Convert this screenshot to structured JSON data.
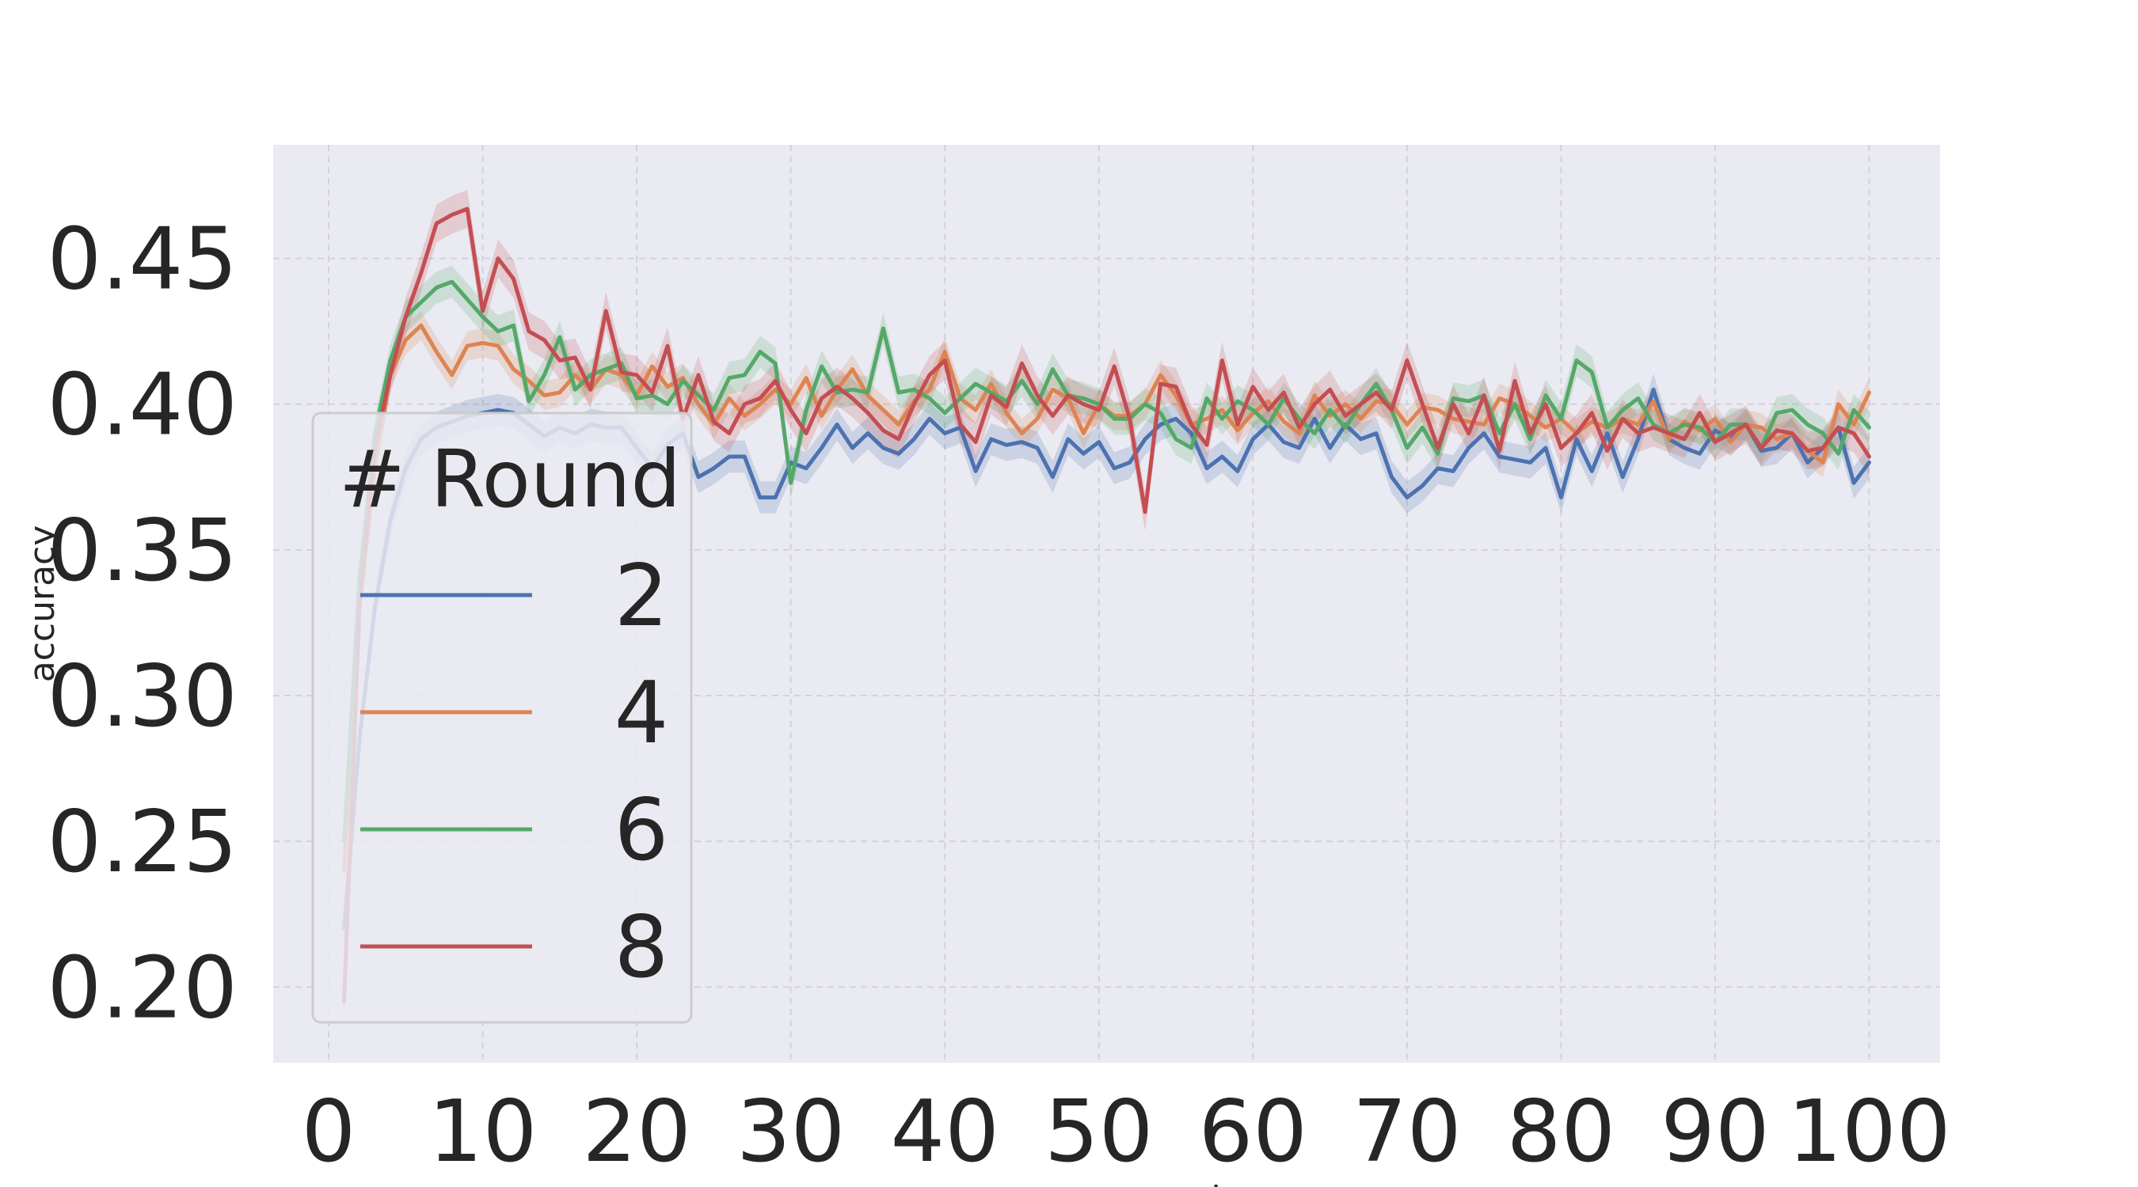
{
  "chart_data": {
    "type": "line",
    "title": "",
    "xlabel": "server_round",
    "ylabel": "accuracy",
    "xlim": [
      -3.6,
      104.6
    ],
    "ylim": [
      0.174,
      0.489
    ],
    "x_ticks": [
      0,
      10,
      20,
      30,
      40,
      50,
      60,
      70,
      80,
      90,
      100
    ],
    "y_ticks": [
      0.2,
      0.25,
      0.3,
      0.35,
      0.4,
      0.45
    ],
    "x_tick_labels": [
      "0",
      "10",
      "20",
      "30",
      "40",
      "50",
      "60",
      "70",
      "80",
      "90",
      "100"
    ],
    "y_tick_labels": [
      "0.20",
      "0.25",
      "0.30",
      "0.35",
      "0.40",
      "0.45"
    ],
    "grid": true,
    "background": "#eaeaf2",
    "legend": {
      "title": "# Round",
      "placement": "center-left"
    },
    "series": [
      {
        "name": "2",
        "color": "#4c72b0",
        "band": 0.0055,
        "x": [
          1,
          2,
          3,
          4,
          5,
          6,
          7,
          8,
          9,
          10,
          11,
          12,
          13,
          14,
          15,
          16,
          17,
          18,
          19,
          20,
          21,
          22,
          23,
          24,
          25,
          26,
          27,
          28,
          29,
          30,
          31,
          32,
          33,
          34,
          35,
          36,
          37,
          38,
          39,
          40,
          41,
          42,
          43,
          44,
          45,
          46,
          47,
          48,
          49,
          50,
          51,
          52,
          53,
          54,
          55,
          56,
          57,
          58,
          59,
          60,
          61,
          62,
          63,
          64,
          65,
          66,
          67,
          68,
          69,
          70,
          71,
          72,
          73,
          74,
          75,
          76,
          77,
          78,
          79,
          80,
          81,
          82,
          83,
          84,
          85,
          86,
          87,
          88,
          89,
          90,
          91,
          92,
          93,
          94,
          95,
          96,
          97,
          98,
          99,
          100
        ],
        "values": [
          0.22,
          0.285,
          0.33,
          0.36,
          0.378,
          0.388,
          0.392,
          0.394,
          0.396,
          0.397,
          0.398,
          0.397,
          0.393,
          0.389,
          0.392,
          0.39,
          0.393,
          0.392,
          0.392,
          0.385,
          0.378,
          0.386,
          0.39,
          0.375,
          0.378,
          0.382,
          0.382,
          0.368,
          0.368,
          0.38,
          0.378,
          0.385,
          0.393,
          0.385,
          0.39,
          0.385,
          0.383,
          0.388,
          0.395,
          0.39,
          0.392,
          0.377,
          0.388,
          0.386,
          0.387,
          0.385,
          0.375,
          0.388,
          0.383,
          0.387,
          0.378,
          0.38,
          0.388,
          0.393,
          0.395,
          0.39,
          0.378,
          0.382,
          0.377,
          0.388,
          0.393,
          0.387,
          0.385,
          0.395,
          0.385,
          0.393,
          0.388,
          0.39,
          0.375,
          0.368,
          0.372,
          0.378,
          0.377,
          0.385,
          0.39,
          0.382,
          0.381,
          0.38,
          0.385,
          0.368,
          0.388,
          0.377,
          0.39,
          0.375,
          0.388,
          0.405,
          0.388,
          0.385,
          0.383,
          0.391,
          0.388,
          0.393,
          0.384,
          0.385,
          0.39,
          0.38,
          0.385,
          0.392,
          0.373,
          0.38
        ]
      },
      {
        "name": "4",
        "color": "#dd8452",
        "band": 0.005,
        "x": [
          1,
          2,
          3,
          4,
          5,
          6,
          7,
          8,
          9,
          10,
          11,
          12,
          13,
          14,
          15,
          16,
          17,
          18,
          19,
          20,
          21,
          22,
          23,
          24,
          25,
          26,
          27,
          28,
          29,
          30,
          31,
          32,
          33,
          34,
          35,
          36,
          37,
          38,
          39,
          40,
          41,
          42,
          43,
          44,
          45,
          46,
          47,
          48,
          49,
          50,
          51,
          52,
          53,
          54,
          55,
          56,
          57,
          58,
          59,
          60,
          61,
          62,
          63,
          64,
          65,
          66,
          67,
          68,
          69,
          70,
          71,
          72,
          73,
          74,
          75,
          76,
          77,
          78,
          79,
          80,
          81,
          82,
          83,
          84,
          85,
          86,
          87,
          88,
          89,
          90,
          91,
          92,
          93,
          94,
          95,
          96,
          97,
          98,
          99,
          100
        ],
        "values": [
          0.24,
          0.33,
          0.378,
          0.41,
          0.422,
          0.427,
          0.418,
          0.41,
          0.42,
          0.421,
          0.42,
          0.412,
          0.408,
          0.403,
          0.404,
          0.41,
          0.405,
          0.412,
          0.41,
          0.403,
          0.413,
          0.406,
          0.409,
          0.4,
          0.393,
          0.402,
          0.396,
          0.4,
          0.405,
          0.4,
          0.409,
          0.396,
          0.405,
          0.412,
          0.403,
          0.398,
          0.393,
          0.401,
          0.405,
          0.418,
          0.402,
          0.398,
          0.407,
          0.397,
          0.39,
          0.395,
          0.405,
          0.402,
          0.39,
          0.4,
          0.396,
          0.396,
          0.4,
          0.41,
          0.403,
          0.393,
          0.395,
          0.398,
          0.391,
          0.397,
          0.401,
          0.394,
          0.39,
          0.403,
          0.396,
          0.4,
          0.395,
          0.401,
          0.4,
          0.393,
          0.399,
          0.398,
          0.395,
          0.394,
          0.393,
          0.402,
          0.4,
          0.396,
          0.392,
          0.395,
          0.39,
          0.394,
          0.392,
          0.395,
          0.393,
          0.401,
          0.388,
          0.394,
          0.391,
          0.395,
          0.387,
          0.393,
          0.392,
          0.388,
          0.39,
          0.384,
          0.38,
          0.4,
          0.393,
          0.404
        ]
      },
      {
        "name": "6",
        "color": "#55a868",
        "band": 0.0055,
        "x": [
          1,
          2,
          3,
          4,
          5,
          6,
          7,
          8,
          9,
          10,
          11,
          12,
          13,
          14,
          15,
          16,
          17,
          18,
          19,
          20,
          21,
          22,
          23,
          24,
          25,
          26,
          27,
          28,
          29,
          30,
          31,
          32,
          33,
          34,
          35,
          36,
          37,
          38,
          39,
          40,
          41,
          42,
          43,
          44,
          45,
          46,
          47,
          48,
          49,
          50,
          51,
          52,
          53,
          54,
          55,
          56,
          57,
          58,
          59,
          60,
          61,
          62,
          63,
          64,
          65,
          66,
          67,
          68,
          69,
          70,
          71,
          72,
          73,
          74,
          75,
          76,
          77,
          78,
          79,
          80,
          81,
          82,
          83,
          84,
          85,
          86,
          87,
          88,
          89,
          90,
          91,
          92,
          93,
          94,
          95,
          96,
          97,
          98,
          99,
          100
        ],
        "values": [
          0.25,
          0.34,
          0.39,
          0.415,
          0.43,
          0.435,
          0.44,
          0.442,
          0.436,
          0.43,
          0.425,
          0.427,
          0.401,
          0.41,
          0.423,
          0.405,
          0.41,
          0.412,
          0.414,
          0.402,
          0.403,
          0.4,
          0.408,
          0.403,
          0.398,
          0.409,
          0.41,
          0.418,
          0.414,
          0.373,
          0.398,
          0.413,
          0.404,
          0.405,
          0.404,
          0.426,
          0.404,
          0.405,
          0.402,
          0.397,
          0.402,
          0.407,
          0.404,
          0.401,
          0.408,
          0.4,
          0.412,
          0.403,
          0.402,
          0.4,
          0.395,
          0.395,
          0.4,
          0.397,
          0.388,
          0.385,
          0.402,
          0.395,
          0.401,
          0.398,
          0.393,
          0.402,
          0.395,
          0.39,
          0.398,
          0.392,
          0.4,
          0.407,
          0.398,
          0.385,
          0.392,
          0.383,
          0.402,
          0.401,
          0.403,
          0.39,
          0.4,
          0.388,
          0.403,
          0.395,
          0.415,
          0.411,
          0.392,
          0.398,
          0.402,
          0.393,
          0.39,
          0.393,
          0.392,
          0.387,
          0.393,
          0.393,
          0.385,
          0.397,
          0.398,
          0.393,
          0.39,
          0.383,
          0.398,
          0.392
        ]
      },
      {
        "name": "8",
        "color": "#c44e52",
        "band": 0.0065,
        "x": [
          1,
          2,
          3,
          4,
          5,
          6,
          7,
          8,
          9,
          10,
          11,
          12,
          13,
          14,
          15,
          16,
          17,
          18,
          19,
          20,
          21,
          22,
          23,
          24,
          25,
          26,
          27,
          28,
          29,
          30,
          31,
          32,
          33,
          34,
          35,
          36,
          37,
          38,
          39,
          40,
          41,
          42,
          43,
          44,
          45,
          46,
          47,
          48,
          49,
          50,
          51,
          52,
          53,
          54,
          55,
          56,
          57,
          58,
          59,
          60,
          61,
          62,
          63,
          64,
          65,
          66,
          67,
          68,
          69,
          70,
          71,
          72,
          73,
          74,
          75,
          76,
          77,
          78,
          79,
          80,
          81,
          82,
          83,
          84,
          85,
          86,
          87,
          88,
          89,
          90,
          91,
          92,
          93,
          94,
          95,
          96,
          97,
          98,
          99,
          100
        ],
        "values": [
          0.195,
          0.33,
          0.385,
          0.41,
          0.43,
          0.445,
          0.462,
          0.465,
          0.467,
          0.432,
          0.45,
          0.443,
          0.425,
          0.422,
          0.415,
          0.416,
          0.405,
          0.432,
          0.411,
          0.41,
          0.404,
          0.42,
          0.395,
          0.41,
          0.394,
          0.39,
          0.4,
          0.402,
          0.408,
          0.398,
          0.39,
          0.402,
          0.406,
          0.402,
          0.397,
          0.391,
          0.388,
          0.4,
          0.41,
          0.415,
          0.393,
          0.387,
          0.403,
          0.399,
          0.414,
          0.403,
          0.396,
          0.403,
          0.4,
          0.398,
          0.413,
          0.395,
          0.363,
          0.407,
          0.406,
          0.393,
          0.386,
          0.415,
          0.393,
          0.406,
          0.398,
          0.404,
          0.392,
          0.4,
          0.405,
          0.396,
          0.4,
          0.404,
          0.398,
          0.415,
          0.4,
          0.385,
          0.4,
          0.39,
          0.403,
          0.384,
          0.408,
          0.39,
          0.4,
          0.385,
          0.39,
          0.397,
          0.384,
          0.395,
          0.39,
          0.392,
          0.39,
          0.388,
          0.397,
          0.387,
          0.39,
          0.393,
          0.385,
          0.391,
          0.39,
          0.384,
          0.385,
          0.392,
          0.39,
          0.382
        ]
      }
    ]
  }
}
